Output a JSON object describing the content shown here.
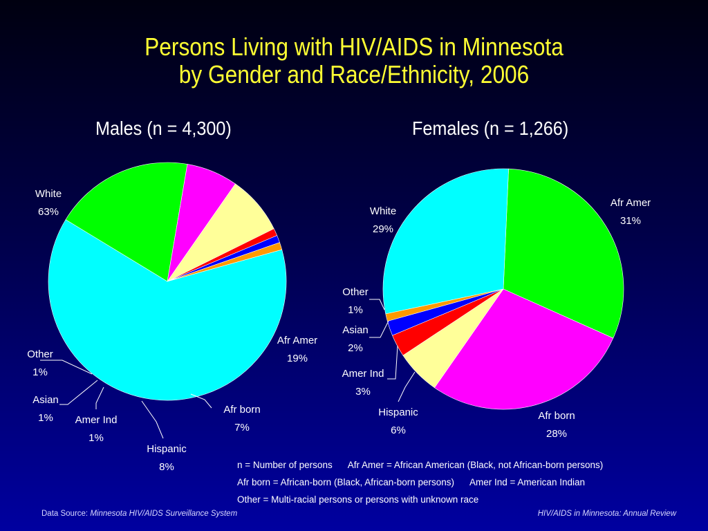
{
  "title_line1": "Persons Living with HIV/AIDS in Minnesota",
  "title_line2": "by Gender and Race/Ethnicity, 2006",
  "chart_data": [
    {
      "type": "pie",
      "title": "Males (n = 4,300)",
      "slices": [
        {
          "label": "White",
          "value": 63,
          "value_label": "63%",
          "color": "#00ffff"
        },
        {
          "label": "Afr Amer",
          "value": 19,
          "value_label": "19%",
          "color": "#00ff00"
        },
        {
          "label": "Afr born",
          "value": 7,
          "value_label": "7%",
          "color": "#ff00ff"
        },
        {
          "label": "Hispanic",
          "value": 8,
          "value_label": "8%",
          "color": "#ffff99"
        },
        {
          "label": "Amer Ind",
          "value": 1,
          "value_label": "1%",
          "color": "#ff0000"
        },
        {
          "label": "Asian",
          "value": 1,
          "value_label": "1%",
          "color": "#0000ff"
        },
        {
          "label": "Other",
          "value": 1,
          "value_label": "1%",
          "color": "#ff9900"
        }
      ]
    },
    {
      "type": "pie",
      "title": "Females (n = 1,266)",
      "slices": [
        {
          "label": "Afr Amer",
          "value": 31,
          "value_label": "31%",
          "color": "#00ff00"
        },
        {
          "label": "Afr born",
          "value": 28,
          "value_label": "28%",
          "color": "#ff00ff"
        },
        {
          "label": "Hispanic",
          "value": 6,
          "value_label": "6%",
          "color": "#ffff99"
        },
        {
          "label": "Amer Ind",
          "value": 3,
          "value_label": "3%",
          "color": "#ff0000"
        },
        {
          "label": "Asian",
          "value": 2,
          "value_label": "2%",
          "color": "#0000ff"
        },
        {
          "label": "Other",
          "value": 1,
          "value_label": "1%",
          "color": "#ff9900"
        },
        {
          "label": "White",
          "value": 29,
          "value_label": "29%",
          "color": "#00ffff"
        }
      ]
    }
  ],
  "notes": {
    "line1a": "n = Number of persons",
    "line1b": "Afr Amer = African American (Black, not African-born persons)",
    "line2a": "Afr born = African-born (Black, African-born persons)",
    "line2b": "Amer Ind = American Indian",
    "line3": "Other = Multi-racial persons or persons with unknown race"
  },
  "footer": {
    "source_label": "Data Source:",
    "source_name": "Minnesota HIV/AIDS Surveillance System",
    "right": "HIV/AIDS in Minnesota: Annual Review"
  }
}
